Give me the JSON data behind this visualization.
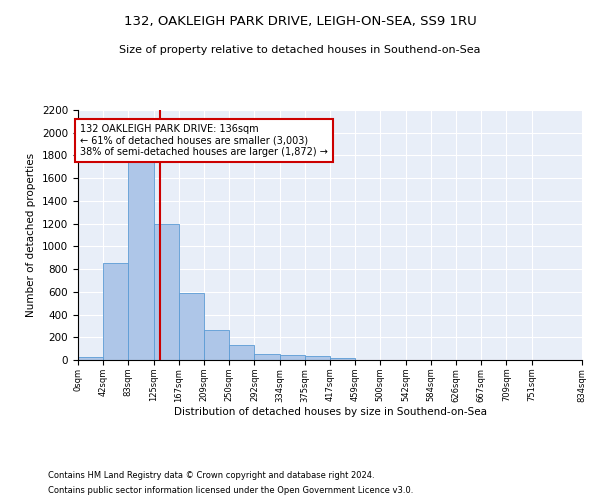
{
  "title_line1": "132, OAKLEIGH PARK DRIVE, LEIGH-ON-SEA, SS9 1RU",
  "title_line2": "Size of property relative to detached houses in Southend-on-Sea",
  "xlabel": "Distribution of detached houses by size in Southend-on-Sea",
  "ylabel": "Number of detached properties",
  "bar_values": [
    25,
    850,
    1800,
    1200,
    590,
    260,
    130,
    50,
    45,
    32,
    18,
    0,
    0,
    0,
    0,
    0,
    0,
    0,
    0
  ],
  "bar_edges": [
    0,
    42,
    83,
    125,
    167,
    209,
    250,
    292,
    334,
    375,
    417,
    459,
    500,
    542,
    584,
    626,
    667,
    709,
    751,
    834
  ],
  "tick_labels": [
    "0sqm",
    "42sqm",
    "83sqm",
    "125sqm",
    "167sqm",
    "209sqm",
    "250sqm",
    "292sqm",
    "334sqm",
    "375sqm",
    "417sqm",
    "459sqm",
    "500sqm",
    "542sqm",
    "584sqm",
    "626sqm",
    "667sqm",
    "709sqm",
    "751sqm",
    "834sqm"
  ],
  "bar_color": "#aec6e8",
  "bar_edge_color": "#5b9bd5",
  "vline_x": 136,
  "vline_color": "#cc0000",
  "annotation_text": "132 OAKLEIGH PARK DRIVE: 136sqm\n← 61% of detached houses are smaller (3,003)\n38% of semi-detached houses are larger (1,872) →",
  "annotation_box_color": "#cc0000",
  "background_color": "#e8eef8",
  "ylim": [
    0,
    2200
  ],
  "yticks": [
    0,
    200,
    400,
    600,
    800,
    1000,
    1200,
    1400,
    1600,
    1800,
    2000,
    2200
  ],
  "footnote1": "Contains HM Land Registry data © Crown copyright and database right 2024.",
  "footnote2": "Contains public sector information licensed under the Open Government Licence v3.0."
}
